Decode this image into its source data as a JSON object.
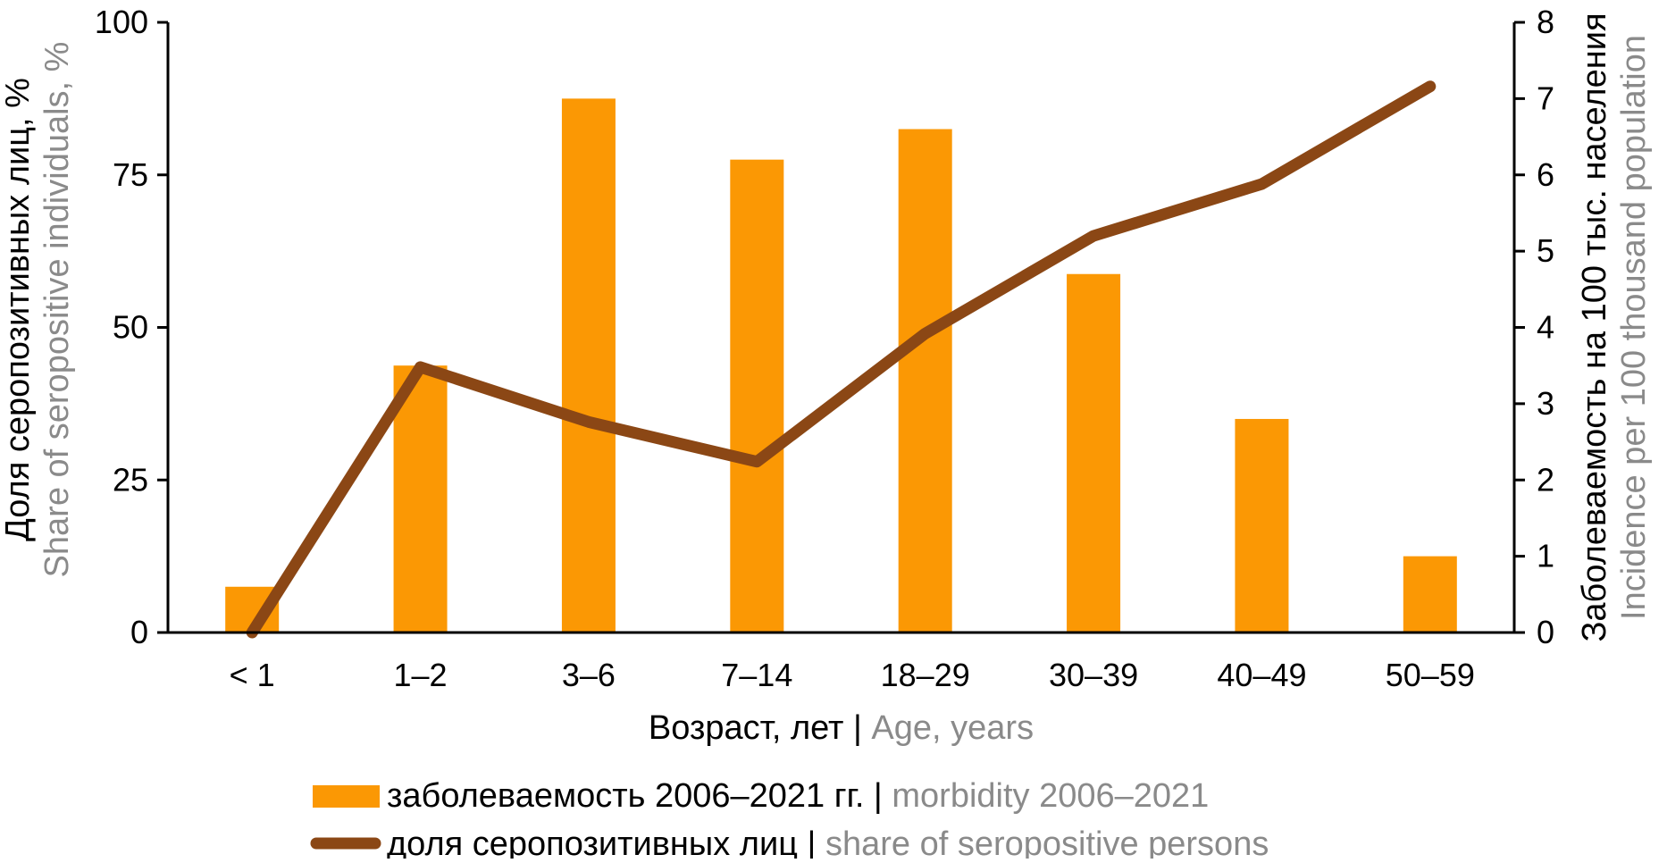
{
  "colors": {
    "bar": "#FB9804",
    "line": "#8B4715",
    "text_black": "#000000",
    "text_gray": "#8A8A8A",
    "axis": "#000000",
    "background": "#FFFFFF"
  },
  "left_axis": {
    "title_ru": "Доля серопозитивных лиц, %",
    "title_en": "Share of seropositive individuals, %",
    "tick_labels": [
      "0",
      "25",
      "50",
      "75",
      "100"
    ]
  },
  "right_axis": {
    "title_ru": "Заболеваемость на 100 тыс. населения",
    "title_en": "Incidence per 100 thousand population",
    "tick_labels": [
      "0",
      "1",
      "2",
      "3",
      "4",
      "5",
      "6",
      "7",
      "8"
    ]
  },
  "x_axis": {
    "title_black": "Возраст, лет |",
    "title_gray": "Age, years",
    "tick_labels": [
      "< 1",
      "1–2",
      "3–6",
      "7–14",
      "18–29",
      "30–39",
      "40–49",
      "50–59"
    ]
  },
  "legend": {
    "items": [
      {
        "swatch": "bar",
        "label_black": "заболеваемость 2006–2021 гг. |",
        "label_gray": "morbidity 2006–2021"
      },
      {
        "swatch": "line",
        "label_black": "доля серопозитивных лиц |",
        "label_gray": "share of seropositive persons"
      }
    ]
  },
  "chart_data": {
    "type": "combo bar+line, dual y-axis",
    "categories": [
      "< 1",
      "1–2",
      "3–6",
      "7–14",
      "18–29",
      "30–39",
      "40–49",
      "50–59"
    ],
    "series": [
      {
        "name": "заболеваемость 2006–2021 гг. | morbidity 2006–2021",
        "type": "bar",
        "y_axis": "right",
        "color": "#FB9804",
        "values": [
          0.6,
          3.5,
          7.0,
          6.2,
          6.6,
          4.7,
          2.8,
          1.0
        ]
      },
      {
        "name": "доля серопозитивных лиц | share of seropositive persons",
        "type": "line",
        "y_axis": "left",
        "color": "#8B4715",
        "values": [
          0,
          43.5,
          34.5,
          28,
          49,
          65,
          73.5,
          89.5
        ]
      }
    ],
    "left_ylim": [
      0,
      100
    ],
    "right_ylim": [
      0,
      8
    ],
    "left_yticks": [
      0,
      25,
      50,
      75,
      100
    ],
    "right_yticks": [
      0,
      1,
      2,
      3,
      4,
      5,
      6,
      7,
      8
    ],
    "left_ylabel": "Доля серопозитивных лиц, % | Share of seropositive individuals, %",
    "right_ylabel": "Заболеваемость на 100 тыс. населения | Incidence per 100 thousand population",
    "xlabel": "Возраст, лет | Age, years",
    "grid": false,
    "legend_position": "bottom-left-of-center"
  }
}
